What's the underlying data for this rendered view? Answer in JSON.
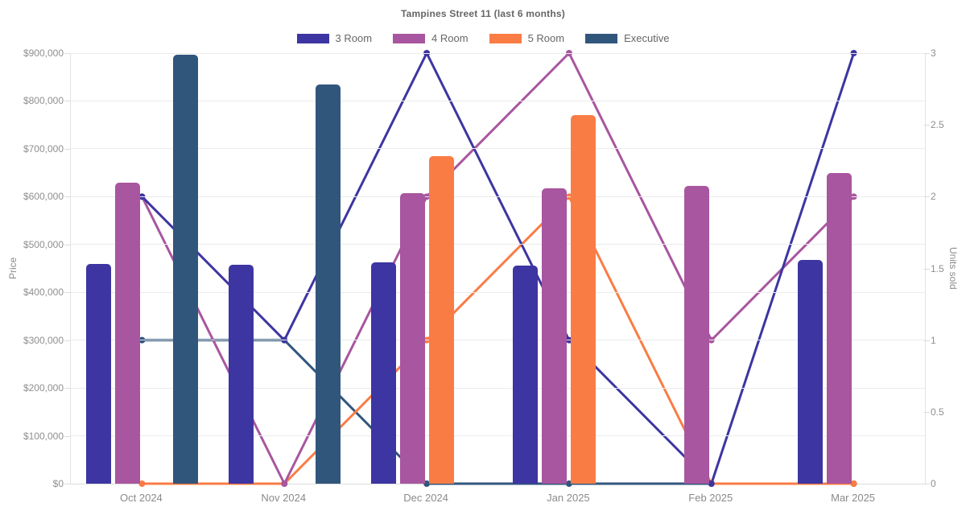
{
  "chart_data": {
    "type": "combo-bar-line",
    "title": "Tampines Street 11 (last 6 months)",
    "categories": [
      "Oct 2024",
      "Nov 2024",
      "Dec 2024",
      "Jan 2025",
      "Feb 2025",
      "Mar 2025"
    ],
    "left_axis": {
      "label": "Price",
      "min": 0,
      "max": 900000,
      "tick_step": 100000,
      "ticks": [
        "$0",
        "$100,000",
        "$200,000",
        "$300,000",
        "$400,000",
        "$500,000",
        "$600,000",
        "$700,000",
        "$800,000",
        "$900,000"
      ]
    },
    "right_axis": {
      "label": "Units sold",
      "min": 0,
      "max": 3,
      "tick_step": 0.5,
      "ticks": [
        "0",
        "0.5",
        "1",
        "1.5",
        "2",
        "2.5",
        "3"
      ]
    },
    "legend_position": "top",
    "grid": true,
    "background_color": "#ffffff",
    "grid_color": "#ebebeb",
    "axis_text_color": "#8f8f8f",
    "series": [
      {
        "name": "3 Room",
        "color": "#3d35a1",
        "bars_price": [
          460000,
          457000,
          462000,
          456000,
          null,
          467000
        ],
        "line_units": [
          2,
          1,
          3,
          1,
          0,
          3
        ]
      },
      {
        "name": "4 Room",
        "color": "#a8569f",
        "bars_price": [
          630000,
          null,
          608000,
          617000,
          622000,
          650000
        ],
        "line_units": [
          2,
          0,
          2,
          3,
          1,
          2
        ]
      },
      {
        "name": "5 Room",
        "color": "#fa7c45",
        "bars_price": [
          null,
          null,
          685000,
          770000,
          null,
          null
        ],
        "line_units": [
          0,
          0,
          1,
          2,
          0,
          0
        ]
      },
      {
        "name": "Executive",
        "color": "#31567c",
        "bars_price": [
          897000,
          835000,
          null,
          null,
          null,
          null
        ],
        "line_units": [
          1,
          1,
          0,
          0,
          0,
          0
        ]
      }
    ]
  }
}
